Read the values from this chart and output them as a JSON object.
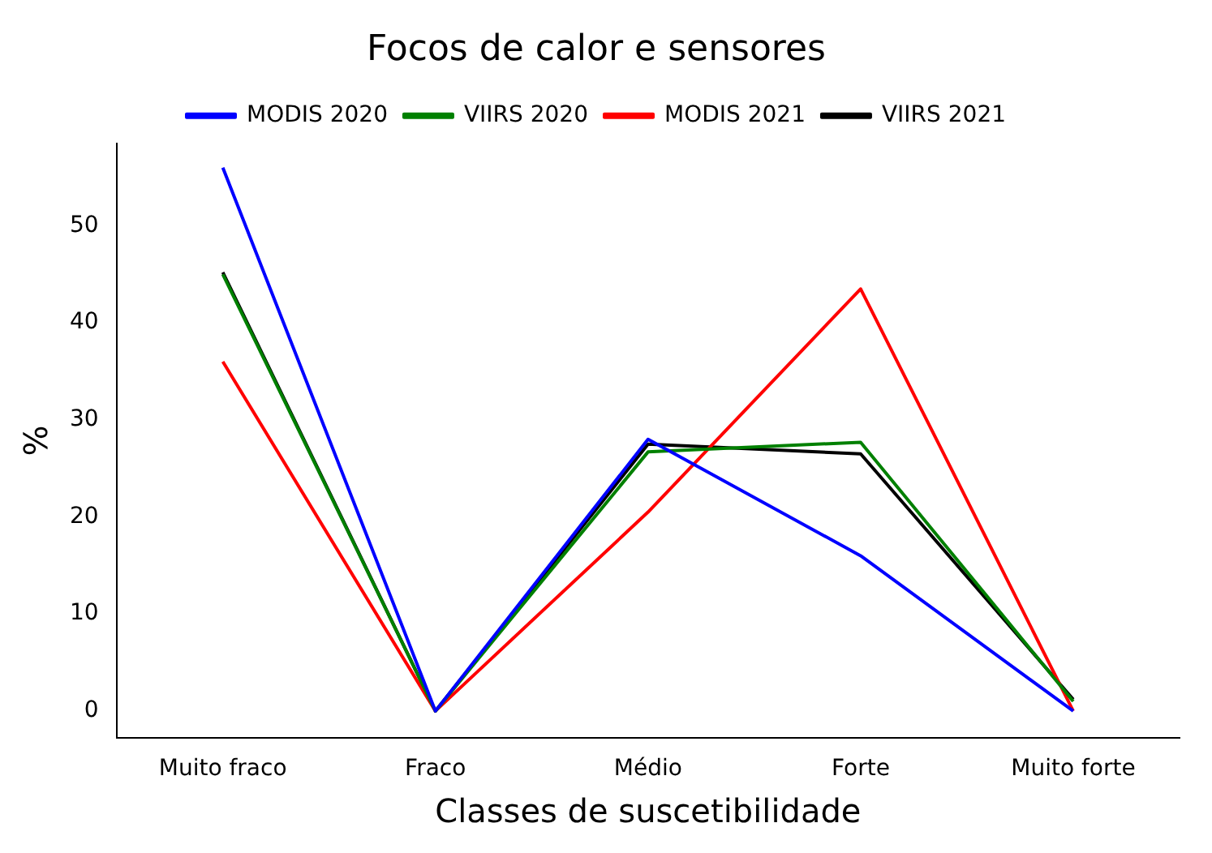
{
  "chart_data": {
    "type": "line",
    "title": "Focos de calor e sensores",
    "xlabel": "Classes de suscetibilidade",
    "ylabel": "%",
    "categories": [
      "Muito fraco",
      "Fraco",
      "Médio",
      "Forte",
      "Muito forte"
    ],
    "series": [
      {
        "name": "MODIS 2020",
        "color": "#0000ff",
        "values": [
          56,
          0,
          28,
          16,
          0
        ]
      },
      {
        "name": "VIIRS 2020",
        "color": "#008000",
        "values": [
          45,
          0,
          26.7,
          27.7,
          1
        ]
      },
      {
        "name": "MODIS 2021",
        "color": "#ff0000",
        "values": [
          36,
          0,
          20.5,
          43.5,
          0
        ]
      },
      {
        "name": "VIIRS 2021",
        "color": "#000000",
        "values": [
          45.2,
          0,
          27.5,
          26.5,
          1.2
        ]
      }
    ],
    "ylim": [
      -2.8,
      58.5
    ],
    "yticks": [
      0,
      10,
      20,
      30,
      40,
      50
    ],
    "grid": false,
    "legend": "top",
    "marker": "none",
    "line_style": "solid"
  }
}
